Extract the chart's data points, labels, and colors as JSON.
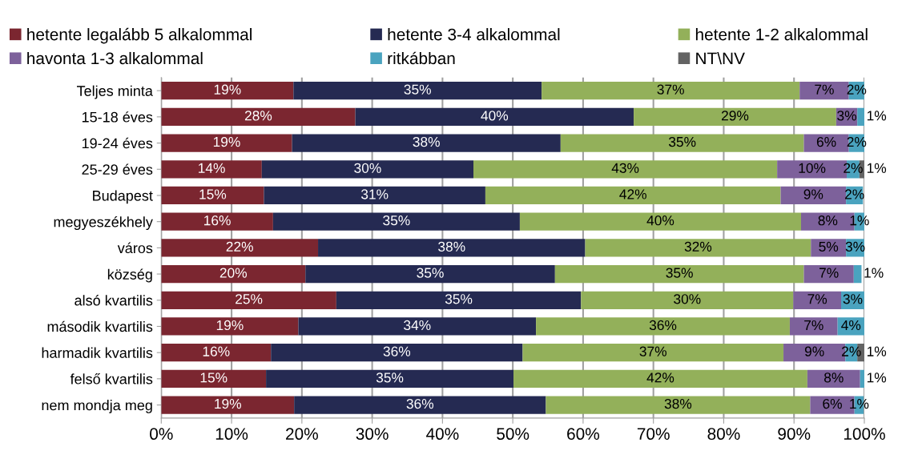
{
  "chart_data": {
    "type": "bar",
    "orientation": "horizontal",
    "stacked": true,
    "categories": [
      "Teljes minta",
      "15-18 éves",
      "19-24 éves",
      "25-29 éves",
      "Budapest",
      "megyeszékhely",
      "város",
      "község",
      "alsó kvartilis",
      "második kvartilis",
      "harmadik kvartilis",
      "felső kvartilis",
      "nem mondja meg"
    ],
    "series": [
      {
        "name": "hetente legalább 5 alkalommal",
        "color": "#7b2630",
        "values": [
          18.8,
          27.6,
          18.6,
          14.3,
          14.6,
          15.9,
          22.3,
          20.5,
          24.9,
          19.5,
          15.6,
          14.9,
          18.9
        ],
        "value_labels": [
          "19%",
          "28%",
          "19%",
          "14%",
          "15%",
          "16%",
          "22%",
          "20%",
          "25%",
          "19%",
          "16%",
          "15%",
          "19%"
        ]
      },
      {
        "name": "hetente 3-4 alkalommal",
        "color": "#252a52",
        "values": [
          35.3,
          39.6,
          38.2,
          30.1,
          31.5,
          35.1,
          38.0,
          35.5,
          34.8,
          33.8,
          35.8,
          35.2,
          35.8
        ],
        "value_labels": [
          "35%",
          "40%",
          "38%",
          "30%",
          "31%",
          "35%",
          "38%",
          "35%",
          "35%",
          "34%",
          "36%",
          "35%",
          "36%"
        ]
      },
      {
        "name": "hetente 1-2 alkalommal",
        "color": "#93b05a",
        "values": [
          36.7,
          28.8,
          34.6,
          43.2,
          42.0,
          40.0,
          32.1,
          35.4,
          30.2,
          36.1,
          37.1,
          41.8,
          37.6
        ],
        "value_labels": [
          "37%",
          "29%",
          "35%",
          "43%",
          "42%",
          "40%",
          "32%",
          "35%",
          "30%",
          "36%",
          "37%",
          "42%",
          "38%"
        ]
      },
      {
        "name": "havonta 1-3 alkalommal",
        "color": "#7d619b",
        "values": [
          7.0,
          3.0,
          6.4,
          9.9,
          9.3,
          7.6,
          5.0,
          7.1,
          6.8,
          6.8,
          8.8,
          7.5,
          6.3
        ],
        "value_labels": [
          "7%",
          "3%",
          "6%",
          "10%",
          "9%",
          "8%",
          "5%",
          "7%",
          "7%",
          "7%",
          "9%",
          "8%",
          "6%"
        ]
      },
      {
        "name": "ritkábban",
        "color": "#4aa3bf",
        "values": [
          2.2,
          1.0,
          2.2,
          1.8,
          2.4,
          1.4,
          2.6,
          1.1,
          3.3,
          3.8,
          1.7,
          0.6,
          1.3
        ],
        "value_labels": [
          "2%",
          "1%",
          "2%",
          "2%",
          "2%",
          "1%",
          "3%",
          "1%",
          "3%",
          "4%",
          "2%",
          "1%",
          "1%"
        ]
      },
      {
        "name": "NT\\NV",
        "color": "#636363",
        "values": [
          null,
          null,
          null,
          0.7,
          null,
          null,
          null,
          null,
          null,
          null,
          1.0,
          null,
          null
        ],
        "value_labels": [
          null,
          null,
          null,
          "1%",
          null,
          null,
          null,
          null,
          null,
          null,
          "1%",
          null,
          null
        ]
      }
    ],
    "xlim": [
      0,
      100
    ],
    "xticks": [
      {
        "value": 0,
        "label": "0%"
      },
      {
        "value": 10,
        "label": "10%"
      },
      {
        "value": 20,
        "label": "20%"
      },
      {
        "value": 30,
        "label": "30%"
      },
      {
        "value": 40,
        "label": "40%"
      },
      {
        "value": 50,
        "label": "50%"
      },
      {
        "value": 60,
        "label": "60%"
      },
      {
        "value": 70,
        "label": "70%"
      },
      {
        "value": 80,
        "label": "80%"
      },
      {
        "value": 90,
        "label": "90%"
      },
      {
        "value": 100,
        "label": "100%"
      }
    ],
    "grid": "x",
    "legend": "top"
  }
}
